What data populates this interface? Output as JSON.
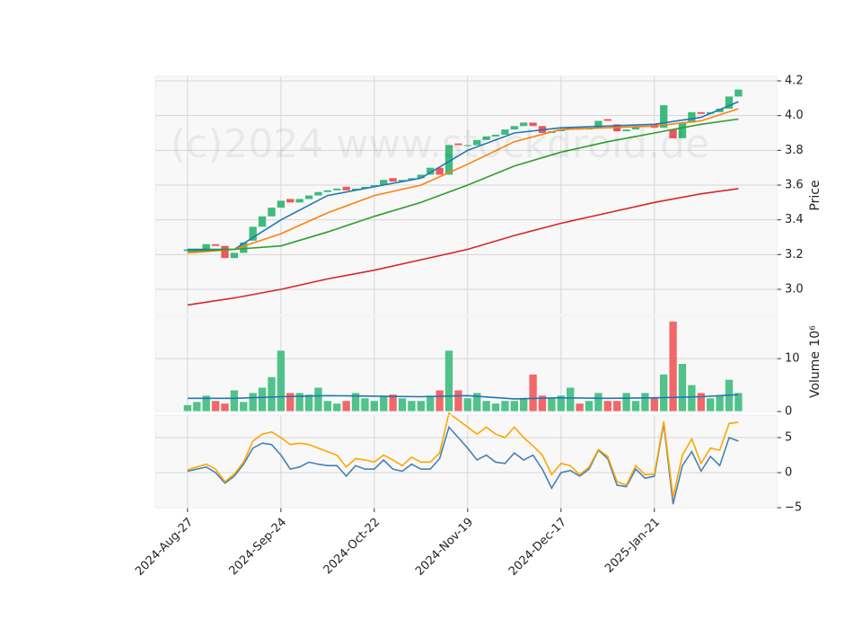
{
  "watermark": "(c)2024 www.stockdroid.de",
  "chart_data": [
    {
      "type": "candlestick",
      "ylabel": "Price",
      "xlim": [
        -6.9,
        126.2
      ],
      "xticks": [
        0,
        20,
        40,
        60,
        80,
        100
      ],
      "ylim": [
        2.855,
        4.226
      ],
      "yticks": [
        {
          "value": 3,
          "label": "3.0"
        },
        {
          "value": 3.2,
          "label": "3.2"
        },
        {
          "value": 3.4,
          "label": "3.4"
        },
        {
          "value": 3.6,
          "label": "3.6"
        },
        {
          "value": 3.8,
          "label": "3.8"
        },
        {
          "value": 4,
          "label": "4.0"
        },
        {
          "value": 4.2,
          "label": "4.2"
        }
      ],
      "grid": true,
      "up_color": "#3dbb7d",
      "down_color": "#f0575a",
      "x": [
        0,
        2,
        4,
        6,
        8,
        10,
        12,
        14,
        16,
        18,
        20,
        22,
        24,
        26,
        28,
        30,
        32,
        34,
        36,
        38,
        40,
        42,
        44,
        46,
        48,
        50,
        52,
        54,
        56,
        58,
        60,
        62,
        64,
        66,
        68,
        70,
        72,
        74,
        76,
        78,
        80,
        82,
        84,
        86,
        88,
        90,
        92,
        94,
        96,
        98,
        100,
        102,
        104,
        106,
        108,
        110,
        112,
        114,
        116,
        118
      ],
      "open": [
        3.22,
        3.23,
        3.23,
        3.26,
        3.25,
        3.18,
        3.21,
        3.28,
        3.36,
        3.42,
        3.47,
        3.52,
        3.5,
        3.52,
        3.54,
        3.56,
        3.57,
        3.59,
        3.57,
        3.58,
        3.59,
        3.6,
        3.64,
        3.62,
        3.63,
        3.64,
        3.66,
        3.7,
        3.66,
        3.84,
        3.83,
        3.83,
        3.86,
        3.88,
        3.89,
        3.92,
        3.94,
        3.96,
        3.94,
        3.9,
        3.91,
        3.92,
        3.93,
        3.92,
        3.93,
        3.98,
        3.95,
        3.91,
        3.92,
        3.94,
        3.95,
        3.93,
        3.92,
        3.87,
        3.96,
        4.02,
        4.01,
        4.02,
        4.04,
        4.11
      ],
      "close": [
        3.23,
        3.23,
        3.26,
        3.25,
        3.18,
        3.21,
        3.27,
        3.36,
        3.42,
        3.47,
        3.51,
        3.5,
        3.52,
        3.54,
        3.56,
        3.57,
        3.58,
        3.57,
        3.58,
        3.59,
        3.6,
        3.63,
        3.62,
        3.63,
        3.64,
        3.66,
        3.7,
        3.66,
        3.83,
        3.83,
        3.83,
        3.86,
        3.88,
        3.89,
        3.92,
        3.94,
        3.96,
        3.94,
        3.9,
        3.91,
        3.92,
        3.93,
        3.92,
        3.93,
        3.97,
        3.97,
        3.91,
        3.92,
        3.94,
        3.94,
        3.93,
        4.06,
        3.87,
        3.96,
        4.02,
        4.01,
        4.02,
        4.04,
        4.11,
        4.15
      ],
      "series": [
        {
          "color": "#1f77b4",
          "x": [
            0,
            10,
            20,
            30,
            40,
            50,
            60,
            70,
            80,
            90,
            100,
            110,
            118
          ],
          "values": [
            3.23,
            3.23,
            3.4,
            3.54,
            3.59,
            3.64,
            3.8,
            3.9,
            3.93,
            3.94,
            3.95,
            3.99,
            4.08
          ]
        },
        {
          "color": "#ff7f0e",
          "x": [
            0,
            10,
            20,
            30,
            40,
            50,
            60,
            70,
            80,
            90,
            100,
            110,
            118
          ],
          "values": [
            3.21,
            3.23,
            3.32,
            3.44,
            3.54,
            3.6,
            3.72,
            3.85,
            3.92,
            3.93,
            3.94,
            3.97,
            4.04
          ]
        },
        {
          "color": "#2ca02c",
          "x": [
            0,
            10,
            20,
            30,
            40,
            50,
            60,
            70,
            80,
            90,
            100,
            110,
            118
          ],
          "values": [
            3.22,
            3.23,
            3.25,
            3.33,
            3.42,
            3.5,
            3.6,
            3.71,
            3.79,
            3.85,
            3.9,
            3.95,
            3.98
          ]
        },
        {
          "color": "#d62728",
          "x": [
            0,
            10,
            20,
            30,
            40,
            50,
            60,
            70,
            80,
            90,
            100,
            110,
            118
          ],
          "values": [
            2.91,
            2.95,
            3.0,
            3.06,
            3.11,
            3.17,
            3.23,
            3.31,
            3.38,
            3.44,
            3.5,
            3.55,
            3.58
          ]
        }
      ]
    },
    {
      "type": "bar",
      "ylabel": "Volume",
      "scale_label": "10⁶",
      "xlim": [
        -6.9,
        126.2
      ],
      "xticks": [
        0,
        20,
        40,
        60,
        80,
        100
      ],
      "ylim": [
        0,
        18
      ],
      "yticks": [
        0,
        10
      ],
      "grid": true,
      "up_color": "#3dbb7d",
      "down_color": "#f0575a",
      "x": [
        0,
        2,
        4,
        6,
        8,
        10,
        12,
        14,
        16,
        18,
        20,
        22,
        24,
        26,
        28,
        30,
        32,
        34,
        36,
        38,
        40,
        42,
        44,
        46,
        48,
        50,
        52,
        54,
        56,
        58,
        60,
        62,
        64,
        66,
        68,
        70,
        72,
        74,
        76,
        78,
        80,
        82,
        84,
        86,
        88,
        90,
        92,
        94,
        96,
        98,
        100,
        102,
        104,
        106,
        108,
        110,
        112,
        114,
        116,
        118
      ],
      "values": [
        1.2,
        1.8,
        3,
        2,
        1.5,
        4,
        1.8,
        3.5,
        4.5,
        6.5,
        11.5,
        3.5,
        3.5,
        3.2,
        4.5,
        2,
        1.5,
        2,
        3.5,
        2.5,
        2,
        3,
        3.2,
        2.5,
        2,
        2,
        3,
        4,
        11.5,
        4,
        2.5,
        3.5,
        2,
        1.5,
        2,
        2,
        2.5,
        7,
        3,
        2.5,
        3,
        4.5,
        1.5,
        2,
        3.5,
        2,
        2,
        3.5,
        2,
        3.5,
        2.5,
        7,
        17,
        9,
        5,
        3.5,
        2.5,
        3,
        6,
        3.5
      ],
      "series": [
        {
          "color": "#1f77b4",
          "x": [
            0,
            10,
            20,
            30,
            40,
            50,
            60,
            70,
            80,
            90,
            100,
            110,
            118
          ],
          "values": [
            2.5,
            2.5,
            2.8,
            3.0,
            2.9,
            2.8,
            3.0,
            2.4,
            2.6,
            2.5,
            2.6,
            2.8,
            3.2
          ]
        }
      ]
    },
    {
      "type": "line",
      "xlim": [
        -6.9,
        126.2
      ],
      "xticks": [
        {
          "value": 0,
          "label": "2024-Aug-27"
        },
        {
          "value": 20,
          "label": "2024-Sep-24"
        },
        {
          "value": 40,
          "label": "2024-Oct-22"
        },
        {
          "value": 60,
          "label": "2024-Nov-19"
        },
        {
          "value": 80,
          "label": "2024-Dec-17"
        },
        {
          "value": 100,
          "label": "2025-Jan-21"
        }
      ],
      "ylim": [
        -5,
        8.2
      ],
      "yticks": [
        {
          "value": -5,
          "label": "−5"
        },
        0,
        5
      ],
      "grid": true,
      "x": [
        0,
        2,
        4,
        6,
        8,
        10,
        12,
        14,
        16,
        18,
        20,
        22,
        24,
        26,
        28,
        30,
        32,
        34,
        36,
        38,
        40,
        42,
        44,
        46,
        48,
        50,
        52,
        54,
        56,
        58,
        60,
        62,
        64,
        66,
        68,
        70,
        72,
        74,
        76,
        78,
        80,
        82,
        84,
        86,
        88,
        90,
        92,
        94,
        96,
        98,
        100,
        102,
        104,
        106,
        108,
        110,
        112,
        114,
        116,
        118
      ],
      "series": [
        {
          "color": "#4682b4",
          "values": [
            0.2,
            0.5,
            0.8,
            0,
            -1.5,
            -0.5,
            1.2,
            3.5,
            4.2,
            4.0,
            2.5,
            0.5,
            0.8,
            1.5,
            1.2,
            1.0,
            1.0,
            -0.5,
            1.0,
            0.5,
            0.5,
            1.8,
            0.5,
            0.2,
            1.2,
            0.5,
            0.5,
            2.0,
            6.5,
            5.0,
            3.5,
            1.8,
            2.5,
            1.5,
            1.3,
            2.8,
            1.8,
            2.5,
            0.5,
            -2.2,
            0,
            0.3,
            -0.5,
            0.5,
            3.2,
            2.0,
            -1.8,
            -2.0,
            0.5,
            -0.8,
            -0.5,
            7,
            -4.5,
            1,
            3,
            0.2,
            2.3,
            1,
            5,
            4.5
          ]
        },
        {
          "color": "#ffa500",
          "values": [
            0.4,
            0.8,
            1.2,
            0.5,
            -1.3,
            -0.2,
            1.5,
            4.5,
            5.5,
            5.8,
            5.0,
            4.0,
            4.2,
            4.0,
            3.5,
            3.0,
            2.5,
            0.8,
            2.0,
            1.8,
            1.5,
            2.5,
            1.8,
            1.0,
            2.2,
            1.5,
            1.5,
            2.8,
            8.5,
            7.5,
            6.5,
            5.5,
            6.5,
            5.5,
            5.0,
            6.5,
            5.0,
            3.8,
            2.5,
            -0.3,
            1.3,
            1.0,
            -0.3,
            0.8,
            3.3,
            2.3,
            -1.3,
            -1.8,
            1.0,
            -0.3,
            -0.2,
            7.3,
            -3.5,
            2.5,
            4.8,
            1.3,
            3.5,
            3.2,
            7.0,
            7.2
          ]
        }
      ]
    }
  ]
}
